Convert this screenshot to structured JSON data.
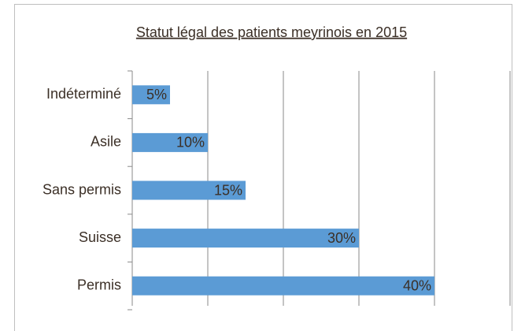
{
  "chart_data": {
    "type": "bar",
    "orientation": "horizontal",
    "title": "Statut légal des patients meyrinois en 2015",
    "categories": [
      "Indéterminé",
      "Asile",
      "Sans permis",
      "Suisse",
      "Permis"
    ],
    "values": [
      5,
      10,
      15,
      30,
      40
    ],
    "value_labels": [
      "5%",
      "10%",
      "15%",
      "30%",
      "40%"
    ],
    "color": "#5b9bd5",
    "xlim": [
      0,
      50
    ],
    "xticks": [
      0,
      10,
      20,
      30,
      40,
      50
    ],
    "grid": true
  }
}
